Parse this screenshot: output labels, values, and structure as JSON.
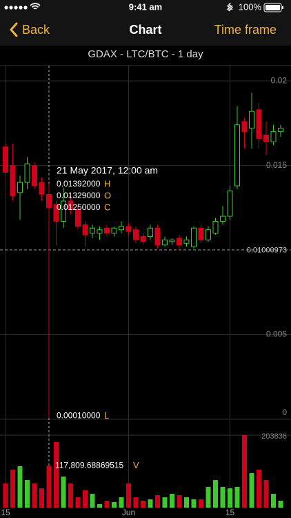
{
  "status_bar": {
    "time": "9:41 am",
    "battery": "100%"
  },
  "nav": {
    "back": "Back",
    "title": "Chart",
    "action": "Time frame"
  },
  "chart_data": {
    "type": "candlestick",
    "title": "GDAX - LTC/BTC - 1 day",
    "categories": [
      "15",
      null,
      null,
      null,
      null,
      null,
      null,
      null,
      null,
      null,
      null,
      null,
      null,
      null,
      null,
      null,
      null,
      "Jun",
      null,
      null,
      null,
      null,
      null,
      null,
      null,
      null,
      null,
      null,
      null,
      null,
      null,
      "15",
      null,
      null,
      null,
      null,
      null,
      null,
      null
    ],
    "open": [
      0.0161,
      0.015,
      0.0134,
      0.014,
      0.015,
      0.014,
      0.01329,
      0.0127,
      0.0117,
      0.0129,
      0.0124,
      0.0115,
      0.011,
      0.011,
      0.0113,
      0.011,
      0.0112,
      0.0114,
      0.0112,
      0.0108,
      0.0108,
      0.0113,
      0.0103,
      0.0105,
      0.0107,
      0.0104,
      0.0102,
      0.0113,
      0.0106,
      0.011,
      0.0117,
      0.012,
      0.0138,
      0.0176,
      0.0172,
      0.0183,
      0.0168,
      0.0164,
      0.017
    ],
    "high": [
      0.0163,
      0.0163,
      0.0144,
      0.0155,
      0.0152,
      0.0143,
      0.01392,
      0.0129,
      0.0137,
      0.0133,
      0.0126,
      0.0117,
      0.0115,
      0.0114,
      0.0115,
      0.0114,
      0.0117,
      0.0116,
      0.0114,
      0.011,
      0.0115,
      0.0115,
      0.0108,
      0.0107,
      0.0109,
      0.0108,
      0.0114,
      0.0115,
      0.0114,
      0.0119,
      0.0126,
      0.0138,
      0.0185,
      0.0178,
      0.0193,
      0.0187,
      0.0176,
      0.0174,
      0.0174
    ],
    "low": [
      0.0146,
      0.0129,
      0.0118,
      0.0136,
      0.0136,
      0.0129,
      0.0001,
      0.0103,
      0.0113,
      0.0121,
      0.0112,
      0.0102,
      0.0107,
      0.0106,
      0.0108,
      0.0108,
      0.011,
      0.0109,
      0.0104,
      0.0103,
      0.0106,
      0.0101,
      0.0102,
      0.0103,
      0.0101,
      0.0102,
      0.0101,
      0.0104,
      0.0105,
      0.0109,
      0.0115,
      0.0118,
      0.0136,
      0.016,
      0.016,
      0.016,
      0.0156,
      0.0162,
      0.0167
    ],
    "close": [
      0.0146,
      0.0132,
      0.014,
      0.0151,
      0.0138,
      0.0133,
      0.0125,
      0.0117,
      0.0129,
      0.0124,
      0.0114,
      0.0109,
      0.0113,
      0.0112,
      0.011,
      0.0113,
      0.0114,
      0.0111,
      0.0106,
      0.0105,
      0.0113,
      0.0103,
      0.0106,
      0.0106,
      0.0103,
      0.0106,
      0.0113,
      0.0106,
      0.0112,
      0.0117,
      0.012,
      0.0135,
      0.0174,
      0.017,
      0.0182,
      0.0166,
      0.0164,
      0.017,
      0.0172
    ],
    "volume": [
      67900,
      106800,
      116500,
      77600,
      67900,
      54300,
      117809.68869515,
      184400,
      87300,
      67900,
      29100,
      48500,
      38800,
      9700,
      19400,
      15500,
      29100,
      67900,
      29100,
      19400,
      23300,
      34900,
      29100,
      38800,
      34900,
      29100,
      23300,
      23300,
      58200,
      77600,
      58200,
      54300,
      58200,
      203836,
      97000,
      106800,
      77600,
      38800,
      19400
    ],
    "up_color": "#3ec92e",
    "down_color": "#d0021b",
    "ylim": [
      0,
      0.0207
    ],
    "yticks": [
      0,
      0.005,
      0.015,
      0.02
    ],
    "grid": true,
    "last_price": {
      "value": 0.01000973,
      "label": "0.01000973"
    },
    "vol_ylim": [
      0,
      203836
    ],
    "vol_ticks": [
      203836
    ],
    "crosshair": {
      "index": 6,
      "date": "21 May 2017, 12:00 am",
      "fields": [
        {
          "letter": "H",
          "label": "0.01392000"
        },
        {
          "letter": "O",
          "label": "0.01329000"
        },
        {
          "letter": "C",
          "label": "0.01250000"
        }
      ],
      "low": {
        "letter": "L",
        "label": "0.00010000"
      },
      "volume": {
        "letter": "V",
        "label": "117,809.68869515"
      }
    }
  }
}
